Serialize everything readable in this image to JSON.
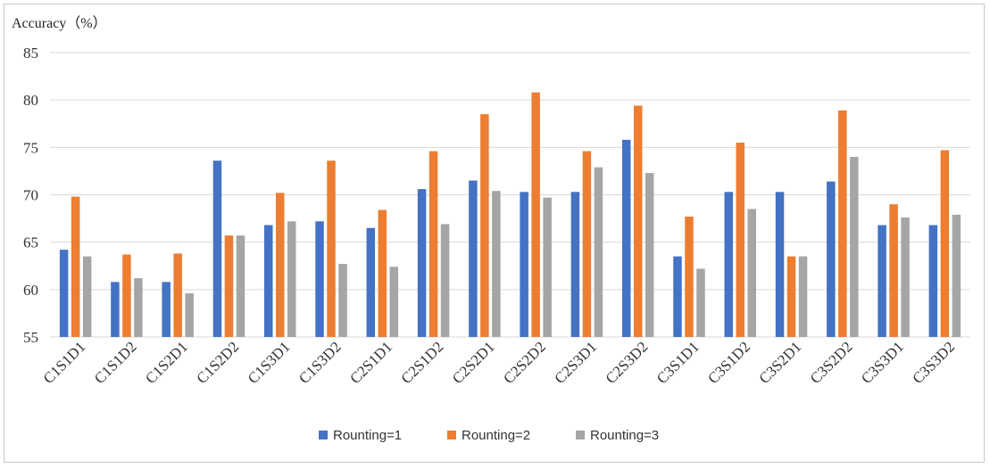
{
  "chart_data": {
    "type": "bar",
    "ylabel": "Accuracy（%）",
    "xlabel": "",
    "ylim": [
      55,
      85
    ],
    "yticks": [
      55,
      60,
      65,
      70,
      75,
      80,
      85
    ],
    "grid": true,
    "legend_position": "bottom",
    "categories": [
      "C1S1D1",
      "C1S1D2",
      "C1S2D1",
      "C1S2D2",
      "C1S3D1",
      "C1S3D2",
      "C2S1D1",
      "C2S1D2",
      "C2S2D1",
      "C2S2D2",
      "C2S3D1",
      "C2S3D2",
      "C3S1D1",
      "C3S1D2",
      "C3S2D1",
      "C3S2D2",
      "C3S3D1",
      "C3S3D2"
    ],
    "series": [
      {
        "name": "Rounting=1",
        "color": "#4472c4",
        "values": [
          64.2,
          60.8,
          60.8,
          73.6,
          66.8,
          67.2,
          66.5,
          70.6,
          71.5,
          70.3,
          70.3,
          75.8,
          63.5,
          70.3,
          70.3,
          71.4,
          66.8,
          66.8
        ]
      },
      {
        "name": "Rounting=2",
        "color": "#ed7d31",
        "values": [
          69.8,
          63.7,
          63.8,
          65.7,
          70.2,
          73.6,
          68.4,
          74.6,
          78.5,
          80.8,
          74.6,
          79.4,
          67.7,
          75.5,
          63.5,
          78.9,
          69.0,
          74.7
        ]
      },
      {
        "name": "Rounting=3",
        "color": "#a5a5a5",
        "values": [
          63.5,
          61.2,
          59.6,
          65.7,
          67.2,
          62.7,
          62.4,
          66.9,
          70.4,
          69.7,
          72.9,
          72.3,
          62.2,
          68.5,
          63.5,
          74.0,
          67.6,
          67.9
        ]
      }
    ]
  }
}
